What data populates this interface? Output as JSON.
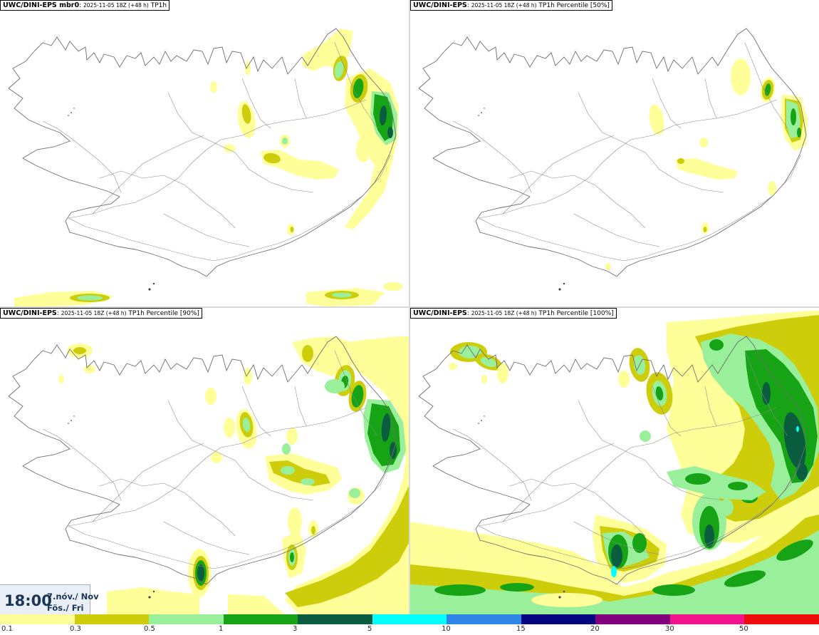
{
  "panels": [
    {
      "model": "UWC/DINI-EPS mbr0",
      "time": "2025-11-05 18Z (+48 h)",
      "field": "TP1h"
    },
    {
      "model": "UWC/DINI-EPS",
      "time": "2025-11-05 18Z (+48 h)",
      "field": "TP1h Percentile [50%]"
    },
    {
      "model": "UWC/DINI-EPS",
      "time": "2025-11-05 18Z (+48 h)",
      "field": "TP1h Percentile [90%]"
    },
    {
      "model": "UWC/DINI-EPS",
      "time": "2025-11-05 18Z (+48 h)",
      "field": "TP1h Percentile [100%]"
    }
  ],
  "valid_time": {
    "clock": "18:00",
    "date_line1": "7.nóv./ Nov",
    "date_line2": "Fös./ Fri"
  },
  "legend": {
    "labels": [
      "0.1",
      "0.3",
      "0.5",
      "1",
      "3",
      "5",
      "10",
      "15",
      "20",
      "30",
      "50"
    ],
    "colors": [
      "#ffff9a",
      "#cdcd0c",
      "#9af09a",
      "#16a416",
      "#0a5d3e",
      "#00ffff",
      "#2f86e6",
      "#05057f",
      "#7f007a",
      "#f2148c",
      "#ee0d0d"
    ]
  },
  "precip_colors": {
    "light": "#ffff9a",
    "olive": "#cdcd0c",
    "pale_green": "#9af09a",
    "green": "#16a416",
    "dark_green": "#0a5d3e",
    "cyan": "#00ffff"
  }
}
